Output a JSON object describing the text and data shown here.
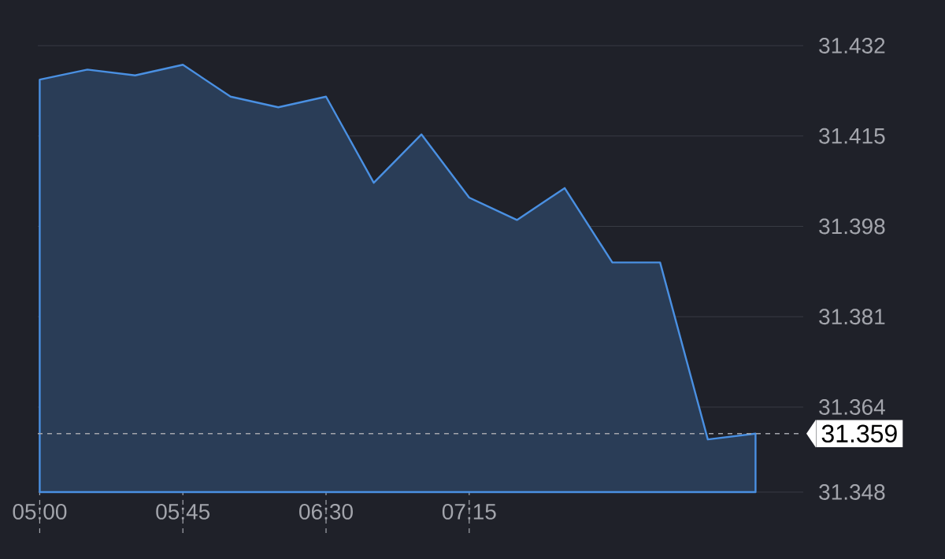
{
  "chart_data": {
    "type": "area",
    "color": "#4a90e2",
    "x": [
      5.0,
      5.25,
      5.5,
      5.75,
      6.0,
      6.25,
      6.5,
      6.75,
      7.0,
      7.25,
      7.5,
      7.75,
      8.0,
      8.25,
      8.5,
      8.75
    ],
    "values": [
      31.4256,
      31.4275,
      31.4264,
      31.4284,
      31.4224,
      31.4204,
      31.4224,
      31.4062,
      31.4153,
      31.4034,
      31.3992,
      31.4052,
      31.3912,
      31.3912,
      31.3579,
      31.359
    ],
    "xlim": [
      4.99,
      9.0
    ],
    "ylim": [
      31.348,
      31.432
    ],
    "xticks": [
      {
        "value": 5.0,
        "label": "05:00"
      },
      {
        "value": 5.75,
        "label": "05:45"
      },
      {
        "value": 6.5,
        "label": "06:30"
      },
      {
        "value": 7.25,
        "label": "07:15"
      }
    ],
    "yticks": [
      31.348,
      31.364,
      31.381,
      31.398,
      31.415,
      31.432
    ],
    "grid": "y",
    "ref_lines": [
      {
        "axis": "y",
        "value": 31.359,
        "label": "31.359",
        "line_style": "dashed"
      }
    ]
  }
}
